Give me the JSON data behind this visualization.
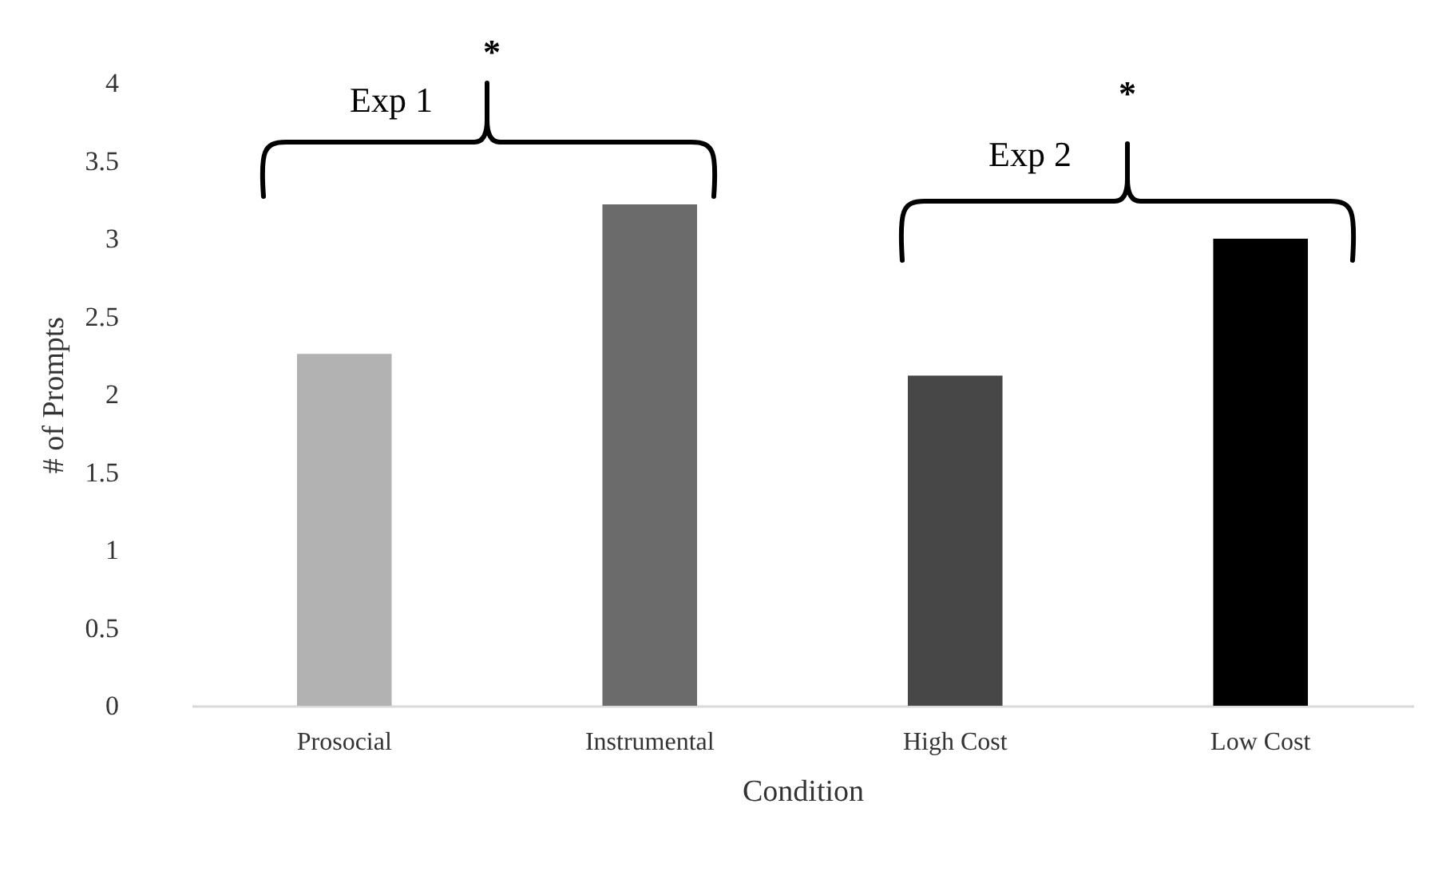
{
  "chart_data": {
    "type": "bar",
    "xlabel": "Condition",
    "ylabel": "# of Prompts",
    "categories": [
      "Prosocial",
      "Instrumental",
      "High Cost",
      "Low Cost"
    ],
    "values": [
      2.26,
      3.22,
      2.12,
      3.0
    ],
    "colors": [
      "#b2b2b2",
      "#6b6b6b",
      "#474747",
      "#000000"
    ],
    "ylim": [
      0,
      4
    ],
    "yticks": [
      0,
      0.5,
      1,
      1.5,
      2,
      2.5,
      3,
      3.5,
      4
    ],
    "grid": false,
    "legend": false,
    "annotations": [
      "Exp 1",
      "*",
      "Exp 2",
      "*"
    ]
  }
}
